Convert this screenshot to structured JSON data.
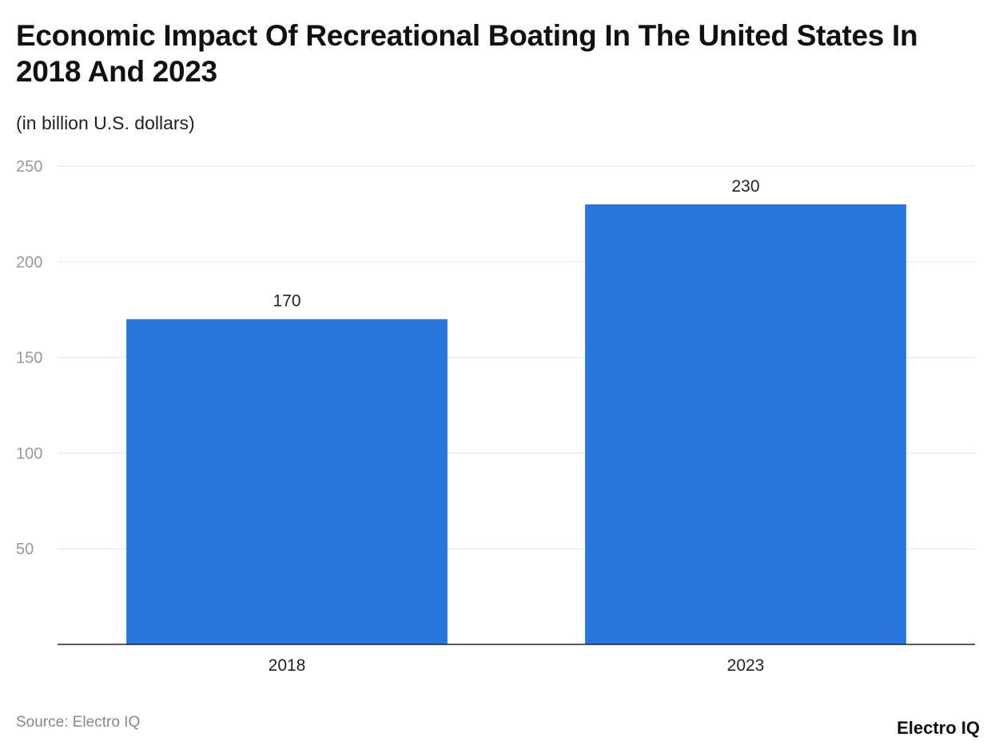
{
  "chart_data": {
    "type": "bar",
    "title": "Economic Impact Of Recreational Boating In The United States In 2018 And 2023",
    "subtitle": "(in billion U.S. dollars)",
    "categories": [
      "2018",
      "2023"
    ],
    "values": [
      170,
      230
    ],
    "ylim": [
      0,
      250
    ],
    "yticks": [
      50,
      100,
      150,
      200,
      250
    ],
    "grid": true,
    "bar_color": "#2876DD",
    "xlabel": "",
    "ylabel": ""
  },
  "footer": {
    "source": "Source: Electro IQ",
    "logo": "Electro IQ"
  }
}
